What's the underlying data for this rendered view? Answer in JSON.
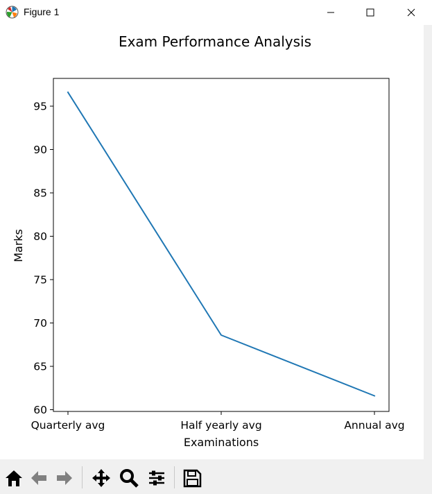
{
  "window": {
    "title": "Figure 1",
    "app_icon": "matplotlib-logo-icon"
  },
  "window_controls": {
    "minimize_icon": "minimize-icon",
    "maximize_icon": "maximize-icon",
    "close_icon": "close-icon"
  },
  "toolbar": {
    "items": [
      {
        "name": "home-icon"
      },
      {
        "name": "back-arrow-icon"
      },
      {
        "name": "forward-arrow-icon"
      },
      {
        "name": "pan-icon"
      },
      {
        "name": "zoom-icon"
      },
      {
        "name": "configure-subplots-icon"
      },
      {
        "name": "save-icon"
      }
    ]
  },
  "chart_data": {
    "type": "line",
    "title": "Exam Performance Analysis",
    "xlabel": "Examinations",
    "ylabel": "Marks",
    "categories": [
      "Quarterly avg",
      "Half yearly avg",
      "Annual avg"
    ],
    "series": [
      {
        "values": [
          96.6,
          68.6,
          61.6
        ],
        "color": "#1f77b4"
      }
    ],
    "ylim": [
      59.8,
      98.2
    ],
    "yticks": [
      60,
      65,
      70,
      75,
      80,
      85,
      90,
      95
    ],
    "grid": false,
    "legend": false
  }
}
